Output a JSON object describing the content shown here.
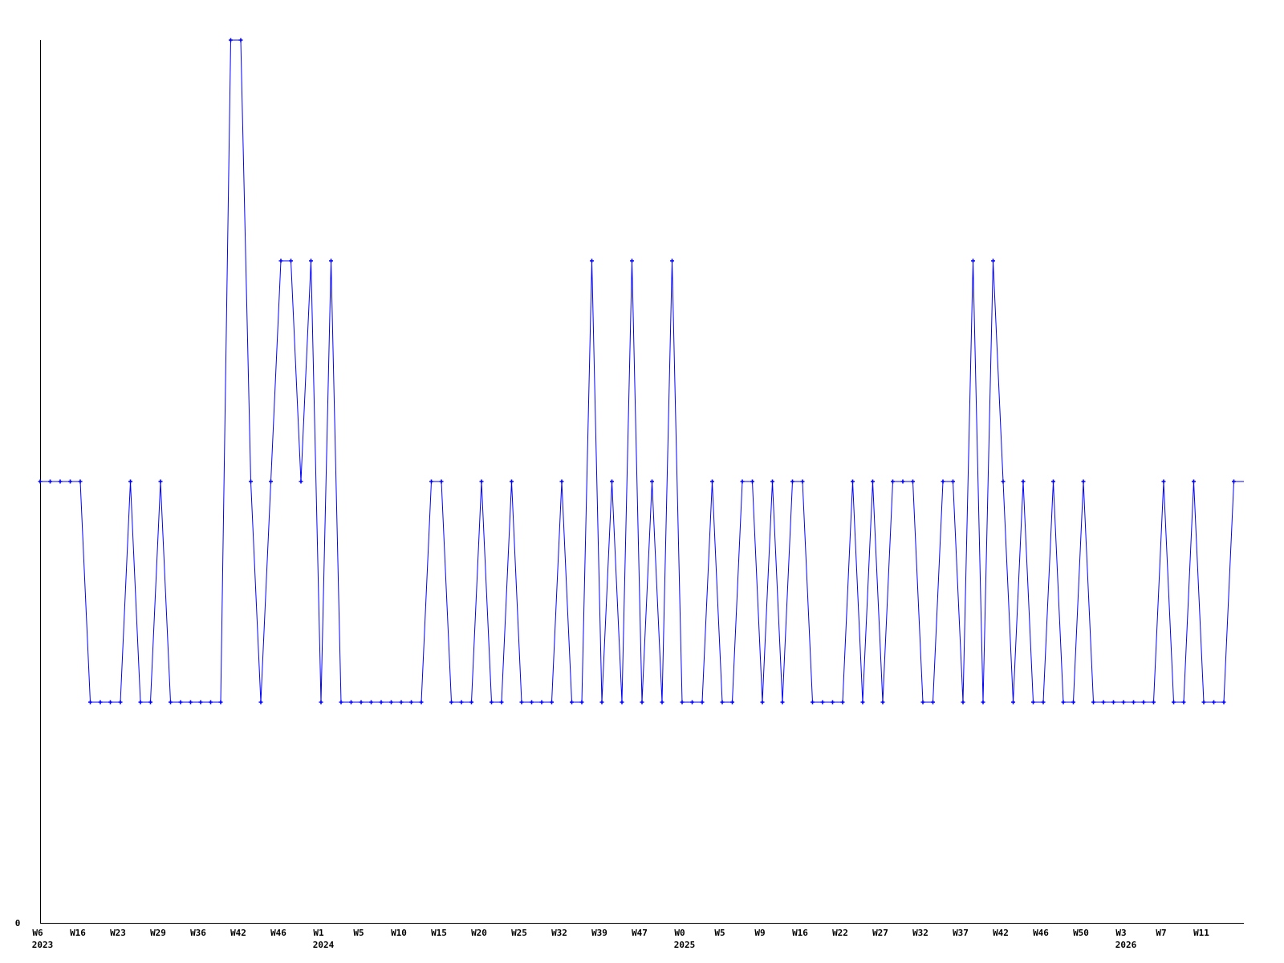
{
  "chart_data": {
    "type": "line",
    "title": "",
    "xlabel": "",
    "ylabel": "",
    "ylim": [
      0,
      4
    ],
    "y_tick_labels": [
      "0"
    ],
    "grid": false,
    "line_color": "#0000ff",
    "axis_color": "#000000",
    "marker": "plus",
    "values": [
      2,
      2,
      2,
      2,
      2,
      1,
      1,
      1,
      1,
      2,
      1,
      1,
      2,
      1,
      1,
      1,
      1,
      1,
      1,
      4,
      4,
      2,
      1,
      2,
      3,
      3,
      2,
      3,
      1,
      3,
      1,
      1,
      1,
      1,
      1,
      1,
      1,
      1,
      1,
      2,
      2,
      1,
      1,
      1,
      2,
      1,
      1,
      2,
      1,
      1,
      1,
      1,
      2,
      1,
      1,
      3,
      1,
      2,
      1,
      3,
      1,
      2,
      1,
      3,
      1,
      1,
      1,
      2,
      1,
      1,
      2,
      2,
      1,
      2,
      1,
      2,
      2,
      1,
      1,
      1,
      1,
      2,
      1,
      2,
      1,
      2,
      2,
      2,
      1,
      1,
      2,
      2,
      1,
      3,
      1,
      3,
      2,
      1,
      2,
      1,
      1,
      2,
      1,
      1,
      2,
      1,
      1,
      1,
      1,
      1,
      1,
      1,
      2,
      1,
      1,
      2,
      1,
      1,
      1,
      2,
      2
    ],
    "x_tick_labels": [
      {
        "index": 0,
        "week": "W6",
        "year": "2023"
      },
      {
        "index": 4,
        "week": "W16"
      },
      {
        "index": 8,
        "week": "W23"
      },
      {
        "index": 12,
        "week": "W29"
      },
      {
        "index": 16,
        "week": "W36"
      },
      {
        "index": 20,
        "week": "W42"
      },
      {
        "index": 24,
        "week": "W46"
      },
      {
        "index": 28,
        "week": "W1",
        "year": "2024"
      },
      {
        "index": 32,
        "week": "W5"
      },
      {
        "index": 36,
        "week": "W10"
      },
      {
        "index": 40,
        "week": "W15"
      },
      {
        "index": 44,
        "week": "W20"
      },
      {
        "index": 48,
        "week": "W25"
      },
      {
        "index": 52,
        "week": "W32"
      },
      {
        "index": 56,
        "week": "W39"
      },
      {
        "index": 60,
        "week": "W47"
      },
      {
        "index": 64,
        "week": "W0",
        "year": "2025"
      },
      {
        "index": 68,
        "week": "W5"
      },
      {
        "index": 72,
        "week": "W9"
      },
      {
        "index": 76,
        "week": "W16"
      },
      {
        "index": 80,
        "week": "W22"
      },
      {
        "index": 84,
        "week": "W27"
      },
      {
        "index": 88,
        "week": "W32"
      },
      {
        "index": 92,
        "week": "W37"
      },
      {
        "index": 96,
        "week": "W42"
      },
      {
        "index": 100,
        "week": "W46"
      },
      {
        "index": 104,
        "week": "W50"
      },
      {
        "index": 108,
        "week": "W3",
        "year": "2026"
      },
      {
        "index": 112,
        "week": "W7"
      },
      {
        "index": 116,
        "week": "W11"
      }
    ]
  }
}
